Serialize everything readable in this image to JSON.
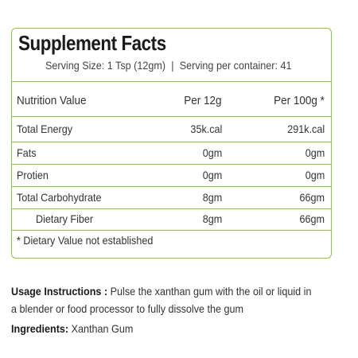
{
  "facts": {
    "title": "Supplement Facts",
    "serving_size": "Serving Size: 1 Tsp (12gm)",
    "separator": "|",
    "serving_per_container": "Serving per container: 41",
    "header": {
      "label": "Nutrition Value",
      "per_serving": "Per 12g",
      "per_100g": "Per 100g *"
    },
    "rows": [
      {
        "label": "Total Energy",
        "per_serving": "35k.cal",
        "per_100g": "291k.cal"
      },
      {
        "label": "Fats",
        "per_serving": "0gm",
        "per_100g": "0gm"
      },
      {
        "label": "Protien",
        "per_serving": "0gm",
        "per_100g": "0gm"
      },
      {
        "label": "Total Carbohydrate",
        "per_serving": "8gm",
        "per_100g": "66gm"
      },
      {
        "label": "Dietary Fiber",
        "per_serving": "8gm",
        "per_100g": "66gm"
      }
    ],
    "footnote": "* Dietary Value not established"
  },
  "usage": {
    "label": "Usage Instructions :",
    "line1": " Pulse the xanthan gum with the oil or liquid in",
    "line2": "a blender or food processor to fully dissolve the gum"
  },
  "ingredients": {
    "label": "Ingredients:",
    "value": " Xanthan Gum"
  }
}
